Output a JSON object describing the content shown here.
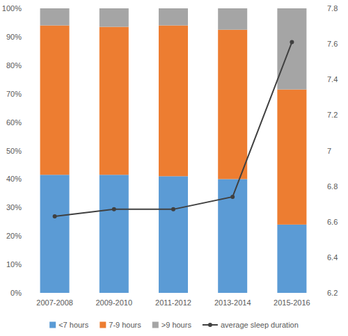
{
  "chart_data": {
    "type": "bar",
    "stacked": true,
    "grid": false,
    "legend": "bottom",
    "categories": [
      "2007-2008",
      "2009-2010",
      "2011-2012",
      "2013-2014",
      "2015-2016"
    ],
    "ylim": [
      0,
      100
    ],
    "yticks": [
      {
        "value": 0,
        "label": "0%"
      },
      {
        "value": 10,
        "label": "10%"
      },
      {
        "value": 20,
        "label": "20%"
      },
      {
        "value": 30,
        "label": "30%"
      },
      {
        "value": 40,
        "label": "40%"
      },
      {
        "value": 50,
        "label": "50%"
      },
      {
        "value": 60,
        "label": "60%"
      },
      {
        "value": 70,
        "label": "70%"
      },
      {
        "value": 80,
        "label": "80%"
      },
      {
        "value": 90,
        "label": "90%"
      },
      {
        "value": 100,
        "label": "100%"
      }
    ],
    "y2lim": [
      6.2,
      7.8
    ],
    "y2ticks": [
      6.2,
      6.4,
      6.6,
      6.8,
      7,
      7.2,
      7.4,
      7.6,
      7.8
    ],
    "series": [
      {
        "name": "<7 hours",
        "color": "#5b9bd5",
        "values": [
          41.5,
          41.5,
          41,
          40,
          24
        ]
      },
      {
        "name": "7-9 hours",
        "color": "#ed7d31",
        "values": [
          52.5,
          52,
          53,
          52.5,
          47.5
        ]
      },
      {
        "name": ">9 hours",
        "color": "#a5a5a5",
        "values": [
          6,
          6.5,
          6,
          7.5,
          28.5
        ]
      },
      {
        "name": "average sleep duration",
        "color": "#404040",
        "type": "line",
        "axis": "y2",
        "marker": "circle",
        "values": [
          6.63,
          6.67,
          6.67,
          6.74,
          7.61
        ]
      }
    ]
  }
}
